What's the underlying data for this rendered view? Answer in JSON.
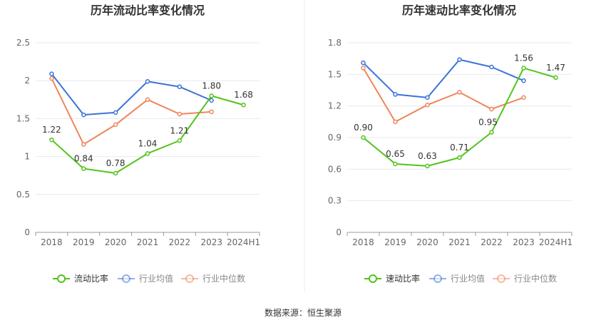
{
  "colors": {
    "company": "#52c41a",
    "industry_avg": "#3b73d9",
    "industry_median": "#f0855b",
    "grid": "#e6e9f0",
    "axis": "#999999",
    "tick_text": "#666666",
    "label_text": "#333333"
  },
  "footer": {
    "source": "数据来源：恒生聚源"
  },
  "chart_data": [
    {
      "type": "line",
      "title": "历年流动比率变化情况",
      "categories": [
        "2018",
        "2019",
        "2020",
        "2021",
        "2022",
        "2023",
        "2024H1"
      ],
      "ylim": [
        0,
        2.5
      ],
      "yticks": [
        0,
        0.5,
        1,
        1.5,
        2,
        2.5
      ],
      "ytick_labels": [
        "0",
        "0.5",
        "1",
        "1.5",
        "2",
        "2.5"
      ],
      "grid": true,
      "legend_position": "bottom",
      "series": [
        {
          "name": "流动比率",
          "key": "company",
          "values": [
            1.22,
            0.84,
            0.78,
            1.04,
            1.21,
            1.8,
            1.68
          ],
          "labels": [
            "1.22",
            "0.84",
            "0.78",
            "1.04",
            "1.21",
            "1.80",
            "1.68"
          ]
        },
        {
          "name": "行业均值",
          "key": "industry_avg",
          "values": [
            2.09,
            1.55,
            1.58,
            1.99,
            1.92,
            1.74,
            null
          ]
        },
        {
          "name": "行业中位数",
          "key": "industry_median",
          "values": [
            2.03,
            1.16,
            1.42,
            1.75,
            1.56,
            1.59,
            null
          ]
        }
      ]
    },
    {
      "type": "line",
      "title": "历年速动比率变化情况",
      "categories": [
        "2018",
        "2019",
        "2020",
        "2021",
        "2022",
        "2023",
        "2024H1"
      ],
      "ylim": [
        0,
        1.8
      ],
      "yticks": [
        0,
        0.3,
        0.6,
        0.9,
        1.2,
        1.5,
        1.8
      ],
      "ytick_labels": [
        "0",
        "0.3",
        "0.6",
        "0.9",
        "1.2",
        "1.5",
        "1.8"
      ],
      "grid": true,
      "legend_position": "bottom",
      "series": [
        {
          "name": "速动比率",
          "key": "company",
          "values": [
            0.9,
            0.65,
            0.63,
            0.71,
            0.95,
            1.56,
            1.47
          ],
          "labels": [
            "0.90",
            "0.65",
            "0.63",
            "0.71",
            "0.95",
            "1.56",
            "1.47"
          ]
        },
        {
          "name": "行业均值",
          "key": "industry_avg",
          "values": [
            1.61,
            1.31,
            1.28,
            1.64,
            1.57,
            1.44,
            null
          ]
        },
        {
          "name": "行业中位数",
          "key": "industry_median",
          "values": [
            1.56,
            1.05,
            1.21,
            1.33,
            1.17,
            1.28,
            null
          ]
        }
      ]
    }
  ]
}
